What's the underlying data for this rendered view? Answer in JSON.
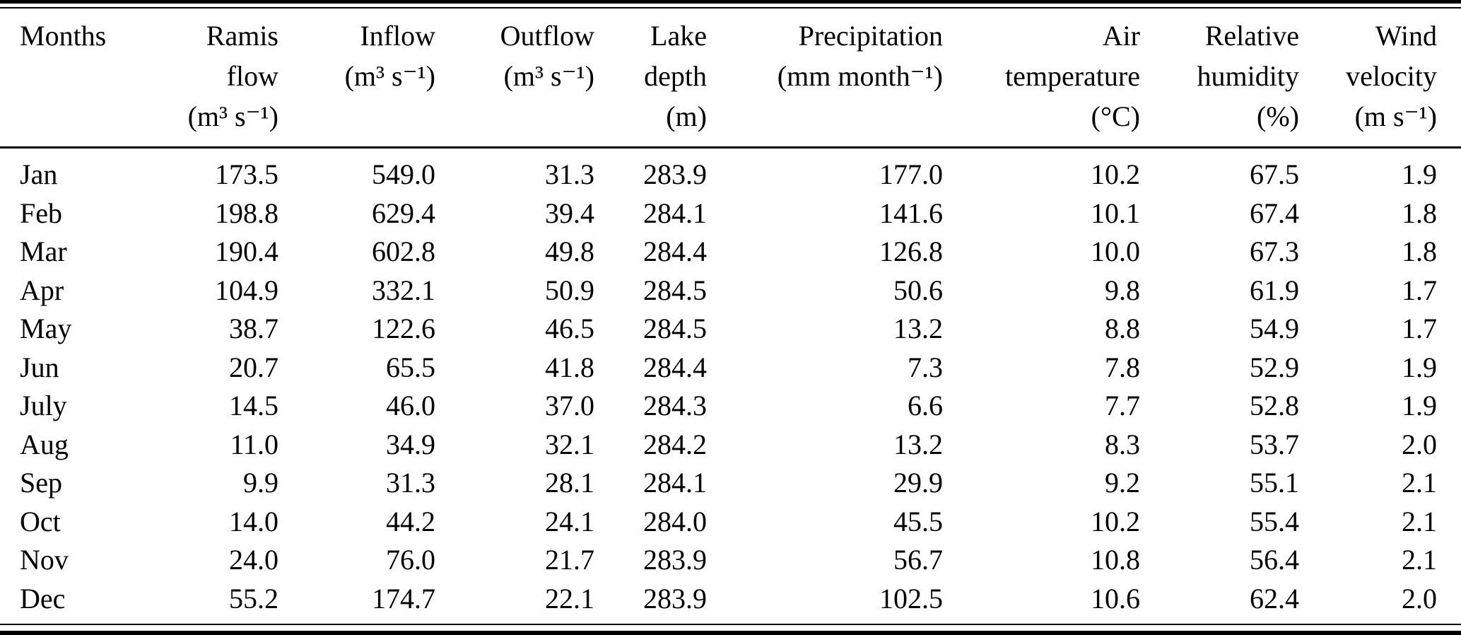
{
  "table": {
    "text_color": "#000000",
    "background_color": "#ffffff",
    "rule_color": "#000000",
    "columns": [
      {
        "id": "months",
        "lines": [
          "Months"
        ]
      },
      {
        "id": "ramis-flow",
        "lines": [
          "Ramis",
          "flow",
          "(m³ s⁻¹)"
        ]
      },
      {
        "id": "inflow",
        "lines": [
          "Inflow",
          "(m³ s⁻¹)"
        ]
      },
      {
        "id": "outflow",
        "lines": [
          "Outflow",
          "(m³ s⁻¹)"
        ]
      },
      {
        "id": "lake-depth",
        "lines": [
          "Lake",
          "depth",
          "(m)"
        ]
      },
      {
        "id": "precipitation",
        "lines": [
          "Precipitation",
          "(mm month⁻¹)"
        ]
      },
      {
        "id": "air-temperature",
        "lines": [
          "Air",
          "temperature",
          "(°C)"
        ]
      },
      {
        "id": "relative-humidity",
        "lines": [
          "Relative",
          "humidity",
          "(%)"
        ]
      },
      {
        "id": "wind-velocity",
        "lines": [
          "Wind",
          "velocity",
          "(m s⁻¹)"
        ]
      }
    ],
    "rows": [
      [
        "Jan",
        "173.5",
        "549.0",
        "31.3",
        "283.9",
        "177.0",
        "10.2",
        "67.5",
        "1.9"
      ],
      [
        "Feb",
        "198.8",
        "629.4",
        "39.4",
        "284.1",
        "141.6",
        "10.1",
        "67.4",
        "1.8"
      ],
      [
        "Mar",
        "190.4",
        "602.8",
        "49.8",
        "284.4",
        "126.8",
        "10.0",
        "67.3",
        "1.8"
      ],
      [
        "Apr",
        "104.9",
        "332.1",
        "50.9",
        "284.5",
        "50.6",
        "9.8",
        "61.9",
        "1.7"
      ],
      [
        "May",
        "38.7",
        "122.6",
        "46.5",
        "284.5",
        "13.2",
        "8.8",
        "54.9",
        "1.7"
      ],
      [
        "Jun",
        "20.7",
        "65.5",
        "41.8",
        "284.4",
        "7.3",
        "7.8",
        "52.9",
        "1.9"
      ],
      [
        "July",
        "14.5",
        "46.0",
        "37.0",
        "284.3",
        "6.6",
        "7.7",
        "52.8",
        "1.9"
      ],
      [
        "Aug",
        "11.0",
        "34.9",
        "32.1",
        "284.2",
        "13.2",
        "8.3",
        "53.7",
        "2.0"
      ],
      [
        "Sep",
        "9.9",
        "31.3",
        "28.1",
        "284.1",
        "29.9",
        "9.2",
        "55.1",
        "2.1"
      ],
      [
        "Oct",
        "14.0",
        "44.2",
        "24.1",
        "284.0",
        "45.5",
        "10.2",
        "55.4",
        "2.1"
      ],
      [
        "Nov",
        "24.0",
        "76.0",
        "21.7",
        "283.9",
        "56.7",
        "10.8",
        "56.4",
        "2.1"
      ],
      [
        "Dec",
        "55.2",
        "174.7",
        "22.1",
        "283.9",
        "102.5",
        "10.6",
        "62.4",
        "2.0"
      ]
    ]
  }
}
